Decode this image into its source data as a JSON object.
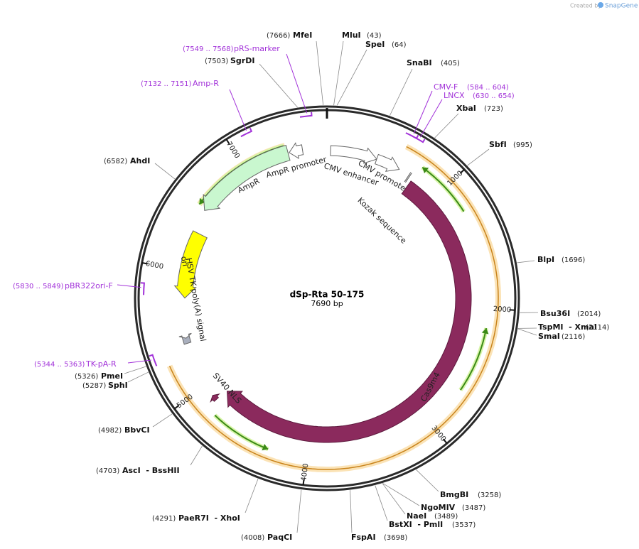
{
  "header": {
    "credit": "Created by",
    "brand": "SnapGene"
  },
  "map": {
    "name": "dSp-Rta 50-175",
    "length": {
      "value": 7690,
      "label": "7690 bp"
    },
    "ticks": [
      1000,
      2000,
      3000,
      4000,
      5000,
      6000,
      7000
    ]
  },
  "enzymes": [
    {
      "name": "MfeI",
      "site": {
        "value": 7666,
        "label": "(7666)"
      }
    },
    {
      "name": "MluI",
      "site": {
        "value": 43,
        "label": "(43)"
      }
    },
    {
      "name": "SpeI",
      "site": {
        "value": 64,
        "label": "(64)"
      }
    },
    {
      "name": "SnaBI",
      "site": {
        "value": 405,
        "label": "(405)"
      }
    },
    {
      "name": "XbaI",
      "site": {
        "value": 723,
        "label": "(723)"
      }
    },
    {
      "name": "SbfI",
      "site": {
        "value": 995,
        "label": "(995)"
      }
    },
    {
      "name": "BlpI",
      "site": {
        "value": 1696,
        "label": "(1696)"
      }
    },
    {
      "name": "Bsu36I",
      "site": {
        "value": 2014,
        "label": "(2014)"
      }
    },
    {
      "name": "TspMI  - XmaI",
      "site": {
        "value": 2114,
        "label": "(2114)"
      }
    },
    {
      "name": "SmaI",
      "site": {
        "value": 2116,
        "label": "(2116)"
      }
    },
    {
      "name": "BmgBI",
      "site": {
        "value": 3258,
        "label": "(3258)"
      }
    },
    {
      "name": "NgoMIV",
      "site": {
        "value": 3487,
        "label": "(3487)"
      }
    },
    {
      "name": "NaeI",
      "site": {
        "value": 3489,
        "label": "(3489)"
      }
    },
    {
      "name": "BstXI  - PmlI",
      "site": {
        "value": 3537,
        "label": "(3537)"
      }
    },
    {
      "name": "FspAI",
      "site": {
        "value": 3698,
        "label": "(3698)"
      }
    },
    {
      "name": "PaqCI",
      "site": {
        "value": 4008,
        "label": "(4008)"
      }
    },
    {
      "name": "PaeR7I  - XhoI",
      "site": {
        "value": 4291,
        "label": "(4291)"
      }
    },
    {
      "name": "AscI  - BssHII",
      "site": {
        "value": 4703,
        "label": "(4703)"
      }
    },
    {
      "name": "BbvCI",
      "site": {
        "value": 4982,
        "label": "(4982)"
      }
    },
    {
      "name": "SphI",
      "site": {
        "value": 5287,
        "label": "(5287)"
      }
    },
    {
      "name": "PmeI",
      "site": {
        "value": 5326,
        "label": "(5326)"
      }
    },
    {
      "name": "AhdI",
      "site": {
        "value": 6582,
        "label": "(6582)"
      }
    },
    {
      "name": "SgrDI",
      "site": {
        "value": 7503,
        "label": "(7503)"
      }
    }
  ],
  "primers": [
    {
      "name": "pRS-marker",
      "start": 7549,
      "end": 7568,
      "range": "(7549 .. 7568)"
    },
    {
      "name": "Amp-R",
      "start": 7132,
      "end": 7151,
      "range": "(7132 .. 7151)"
    },
    {
      "name": "CMV-F",
      "start": 584,
      "end": 604,
      "range": "(584 .. 604)"
    },
    {
      "name": "LNCX",
      "start": 630,
      "end": 654,
      "range": "(630 .. 654)"
    },
    {
      "name": "pBR322ori-F",
      "start": 5830,
      "end": 5849,
      "range": "(5830 .. 5849)"
    },
    {
      "name": "TK-pA-R",
      "start": 5344,
      "end": 5363,
      "range": "(5344 .. 5363)"
    }
  ],
  "features": [
    {
      "name": "CMV enhancer",
      "start": 30,
      "end": 420,
      "direction": 1,
      "color": "#ffffff"
    },
    {
      "name": "CMV promoter",
      "start": 420,
      "end": 625,
      "direction": 1,
      "color": "#ffffff"
    },
    {
      "name": "Kozak sequence",
      "start": 718,
      "end": 728,
      "direction": 1,
      "color": "#ffffff"
    },
    {
      "name": "Cas9m4",
      "start": 760,
      "end": 4850,
      "direction": 1,
      "color": "#8b2a5d"
    },
    {
      "name": "SV40 NLS",
      "start": 4860,
      "end": 4905,
      "direction": 1,
      "color": "#8b2a5d"
    },
    {
      "name": "ori",
      "start": 6340,
      "end": 5770,
      "direction": -1,
      "color": "#ffff00"
    },
    {
      "name": "HSV TK poly(A) signal",
      "start": 5385,
      "end": 5430,
      "direction": -1,
      "color": "#a9afbd"
    },
    {
      "name": "AmpR",
      "start": 7370,
      "end": 6530,
      "direction": -1,
      "color": "#c9f7cf"
    },
    {
      "name": "AmpR promoter",
      "start": 7490,
      "end": 7380,
      "direction": -1,
      "color": "#ffffff"
    }
  ]
}
